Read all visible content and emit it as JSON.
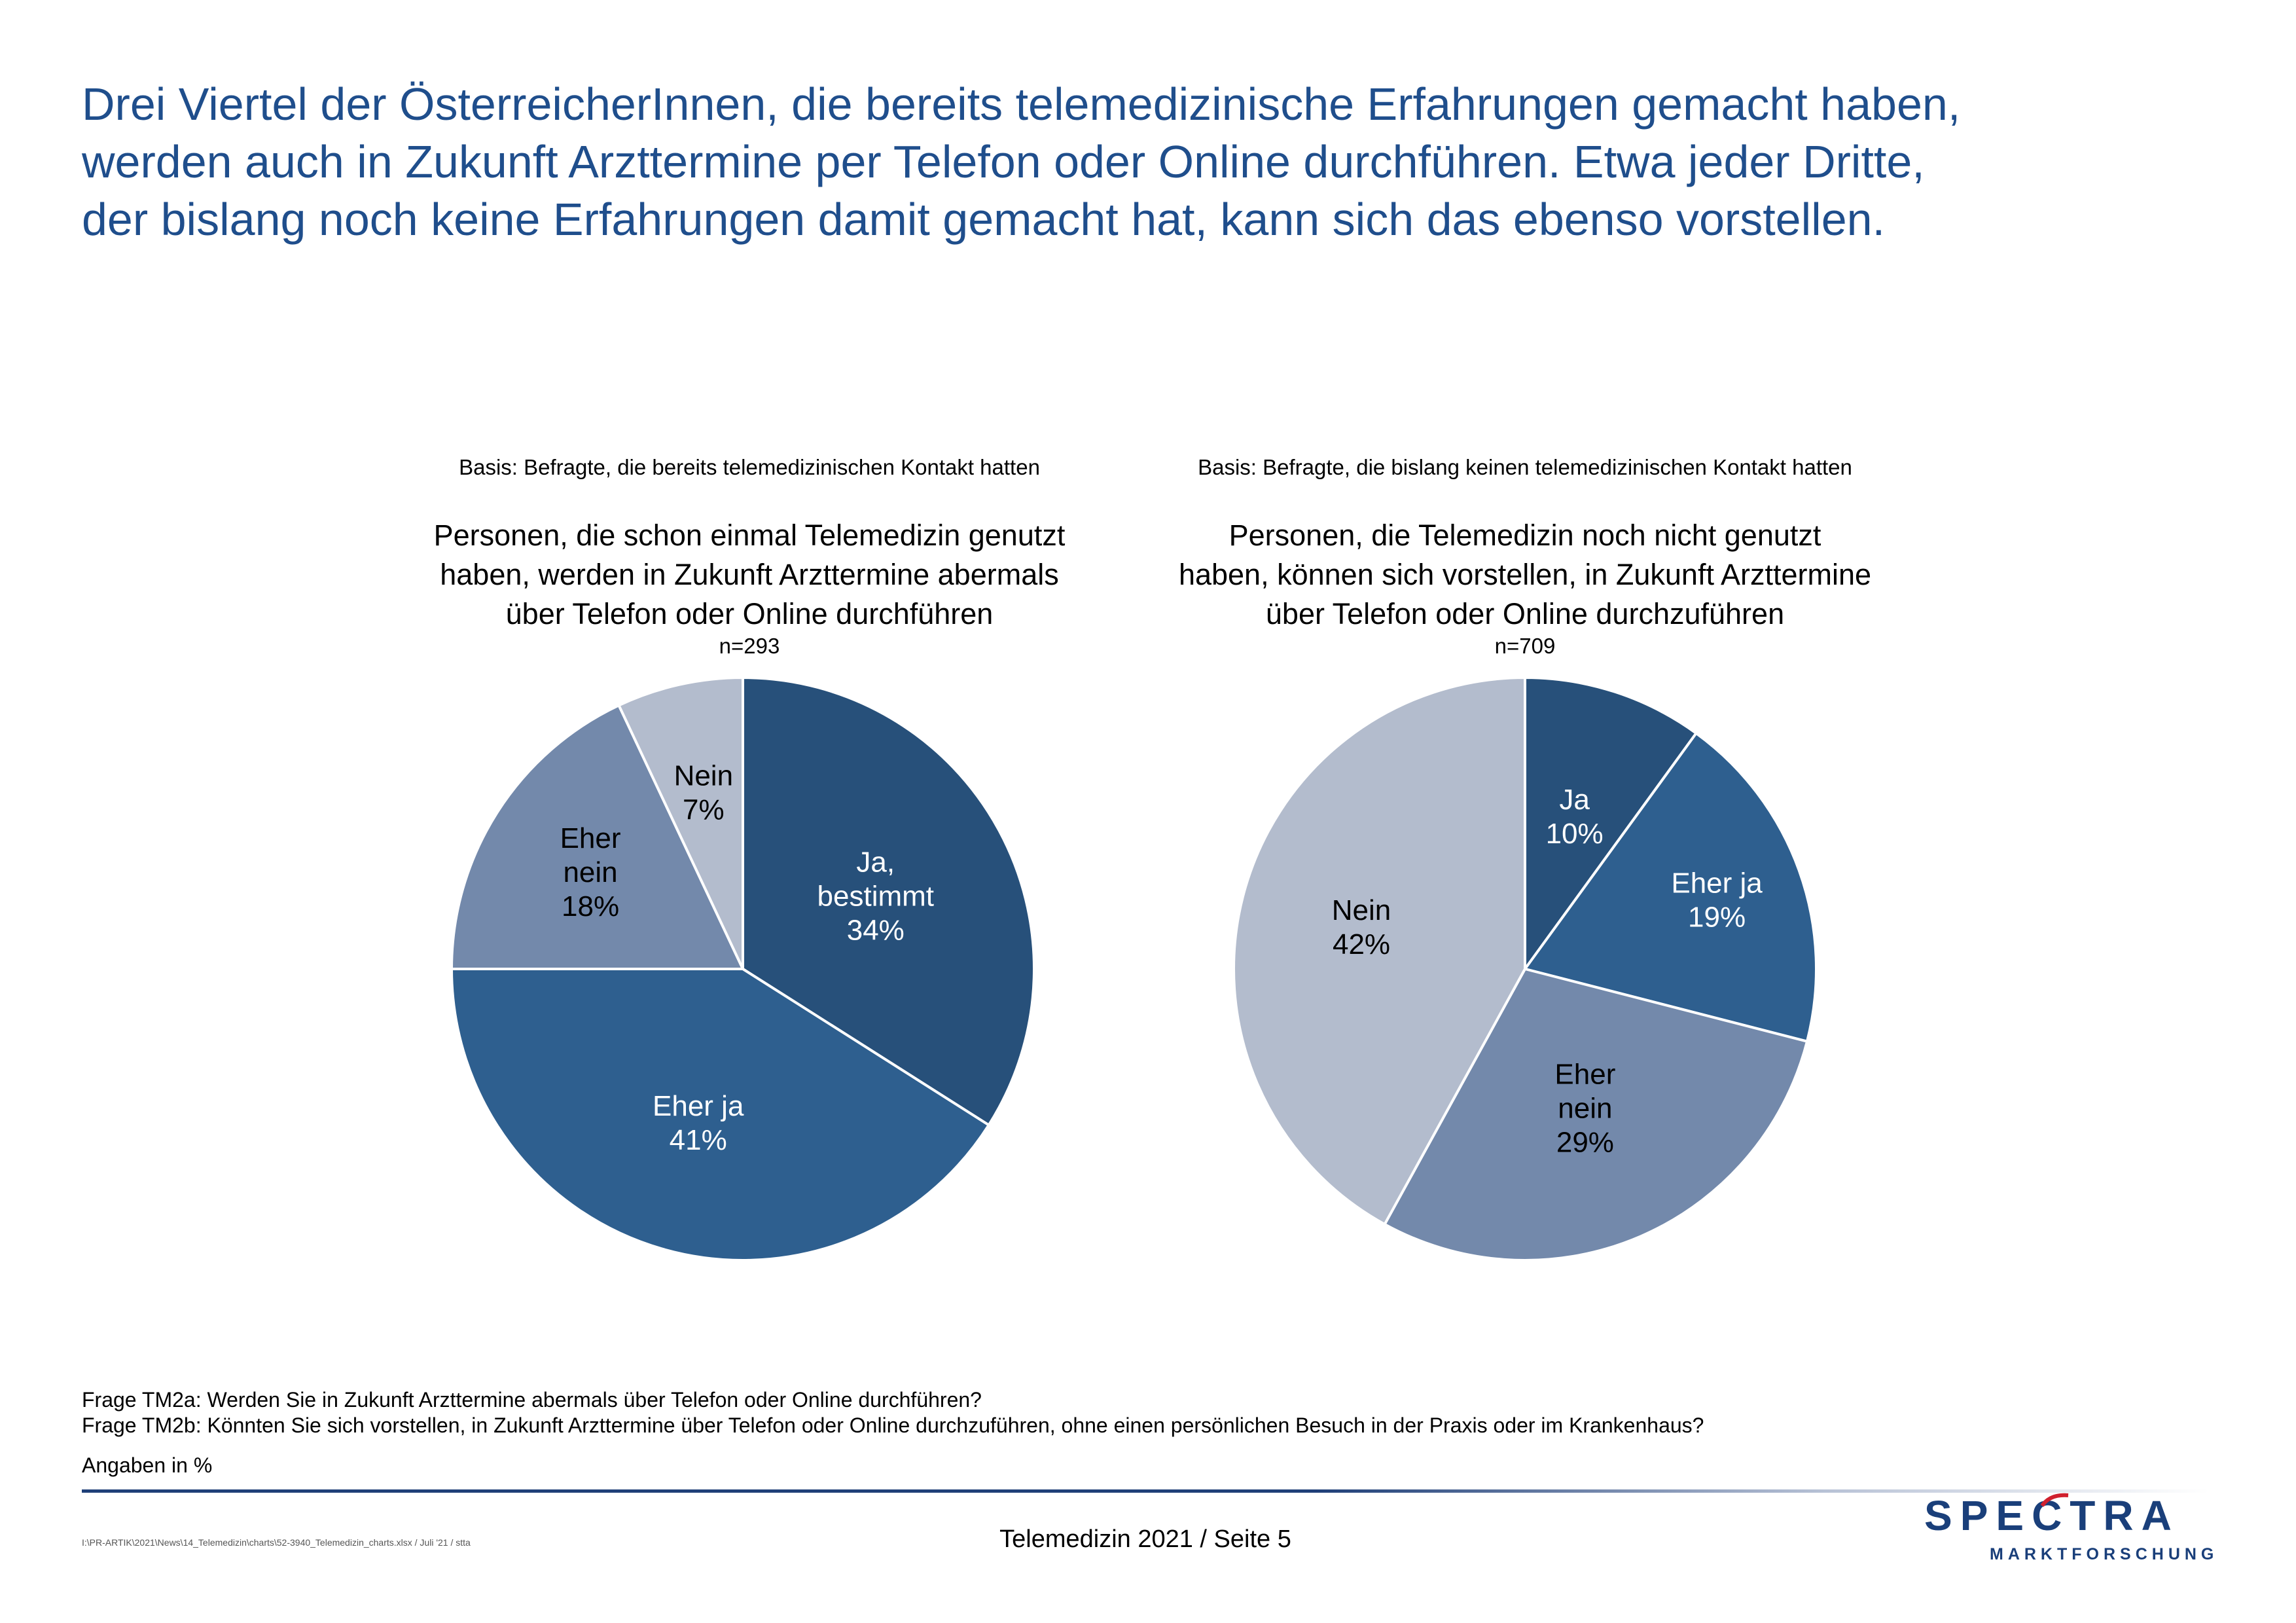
{
  "headline": [
    "Drei Viertel der ÖsterreicherInnen, die bereits telemedizinische Erfahrungen gemacht haben,",
    "werden auch in Zukunft Arzttermine per Telefon oder Online durchführen. Etwa jeder Dritte,",
    "der bislang noch keine Erfahrungen damit gemacht hat, kann sich das ebenso vorstellen."
  ],
  "colors": {
    "headline": "#1f4e8c",
    "slice_dark": "#27507a",
    "slice_mid": "#2e5f8f",
    "slice_slate": "#7389ab",
    "slice_light": "#b3bccd",
    "logo": "#1a3f7a",
    "logo_accent": "#d0202e"
  },
  "chart_data": [
    {
      "type": "pie",
      "basis": "Basis: Befragte, die bereits telemedizinischen Kontakt hatten",
      "title": [
        "Personen, die schon einmal Telemedizin genutzt",
        "haben, werden in Zukunft Arzttermine abermals",
        "über Telefon oder Online durchführen"
      ],
      "n": "n=293",
      "slices": [
        {
          "label": [
            "Ja,",
            "bestimmt"
          ],
          "value": 34,
          "value_label": "34%",
          "color": "#27507a",
          "text_color": "#ffffff"
        },
        {
          "label": [
            "Eher ja"
          ],
          "value": 41,
          "value_label": "41%",
          "color": "#2e5f8f",
          "text_color": "#ffffff"
        },
        {
          "label": [
            "Eher",
            "nein"
          ],
          "value": 18,
          "value_label": "18%",
          "color": "#7389ab",
          "text_color": "#000000"
        },
        {
          "label": [
            "Nein"
          ],
          "value": 7,
          "value_label": "7%",
          "color": "#b3bccd",
          "text_color": "#000000"
        }
      ]
    },
    {
      "type": "pie",
      "basis": "Basis: Befragte, die bislang keinen telemedizinischen Kontakt hatten",
      "title": [
        "Personen, die Telemedizin noch nicht genutzt",
        "haben, können sich vorstellen, in Zukunft Arzttermine",
        "über Telefon oder Online durchzuführen"
      ],
      "n": "n=709",
      "slices": [
        {
          "label": [
            "Ja"
          ],
          "value": 10,
          "value_label": "10%",
          "color": "#27507a",
          "text_color": "#ffffff"
        },
        {
          "label": [
            "Eher ja"
          ],
          "value": 19,
          "value_label": "19%",
          "color": "#2e5f8f",
          "text_color": "#ffffff"
        },
        {
          "label": [
            "Eher",
            "nein"
          ],
          "value": 29,
          "value_label": "29%",
          "color": "#7389ab",
          "text_color": "#000000"
        },
        {
          "label": [
            "Nein"
          ],
          "value": 42,
          "value_label": "42%",
          "color": "#b3bccd",
          "text_color": "#000000"
        }
      ]
    }
  ],
  "footnotes": {
    "q1": "Frage TM2a: Werden Sie in Zukunft Arzttermine abermals über Telefon oder Online durchführen?",
    "q2": "Frage TM2b: Könnten Sie sich vorstellen, in Zukunft Arzttermine über Telefon oder Online durchzuführen, ohne einen persönlichen Besuch in der Praxis oder im Krankenhaus?",
    "unit": "Angaben in %"
  },
  "footer": {
    "path": "I:\\PR-ARTIK\\2021\\News\\14_Telemedizin\\charts\\52-3940_Telemedizin_charts.xlsx / Juli '21 / stta",
    "page": "Telemedizin 2021  /  Seite  5",
    "logo_word": "SPECTRA",
    "logo_sub": "MARKTFORSCHUNG"
  }
}
